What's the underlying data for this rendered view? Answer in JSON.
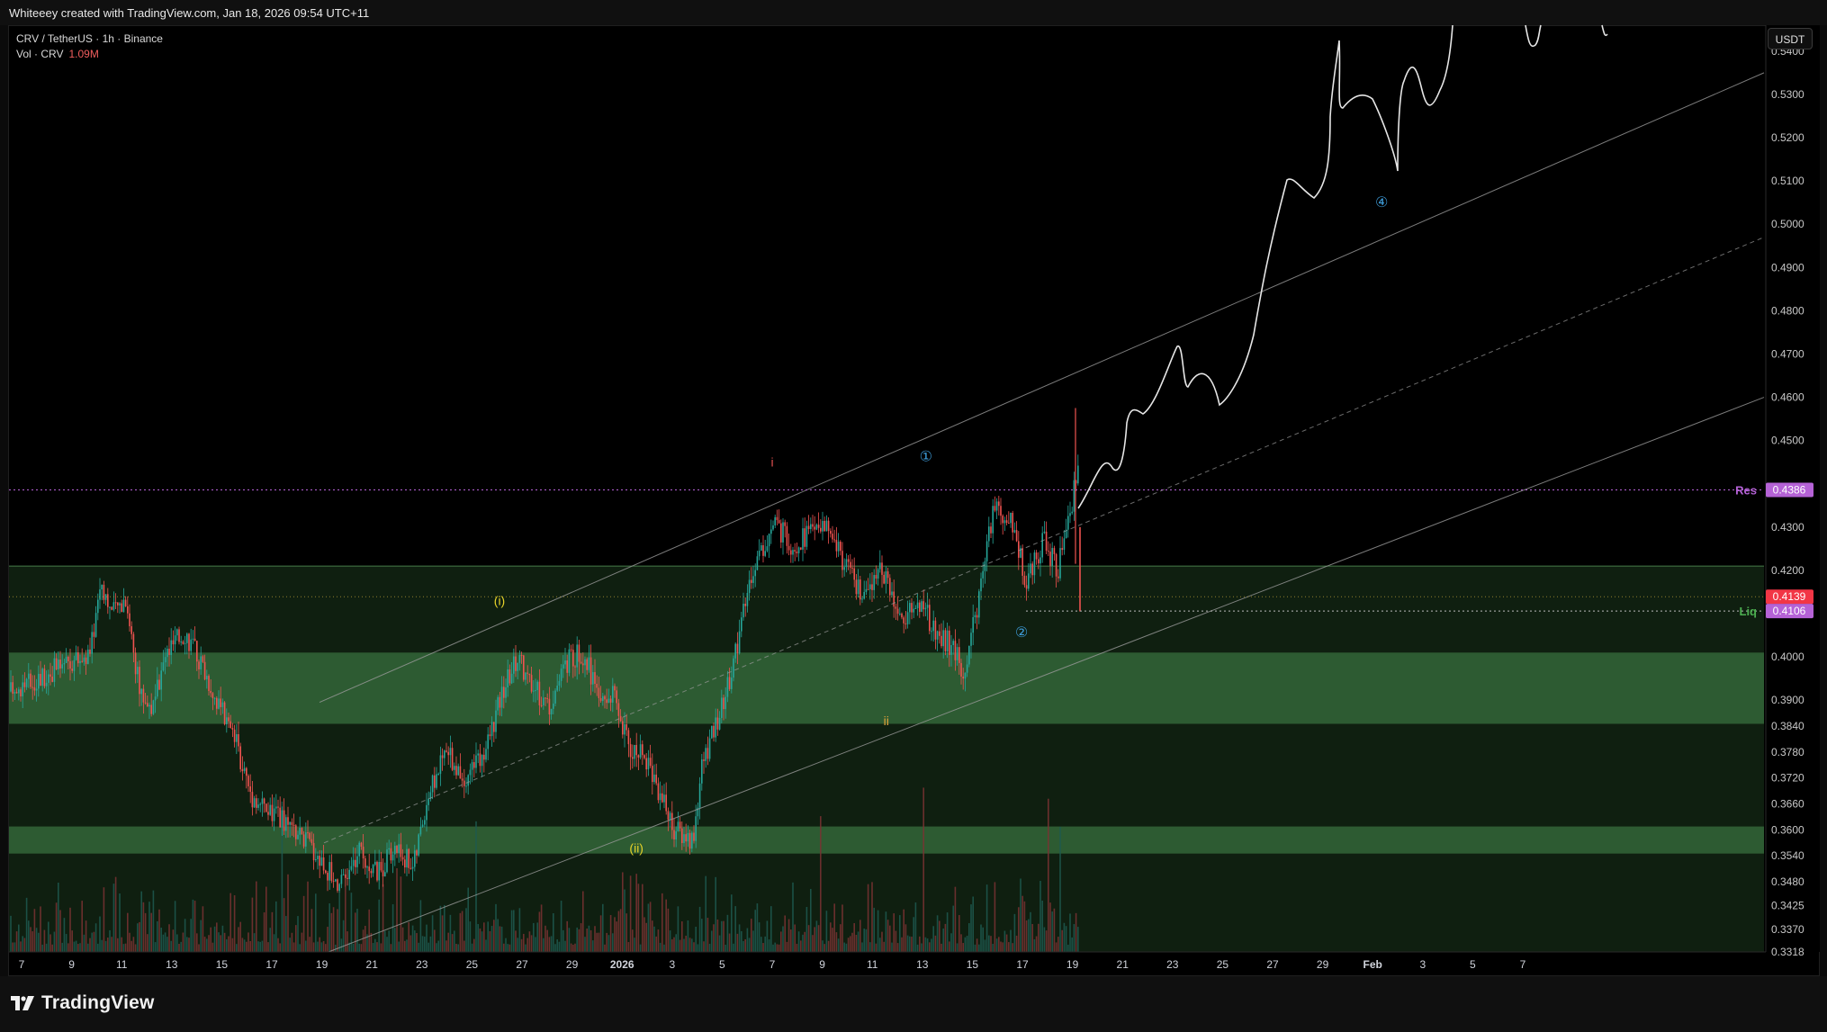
{
  "header": {
    "credit": "Whiteeey created with TradingView.com, Jan 18, 2026 09:54 UTC+11"
  },
  "legend": {
    "symbol_line": "CRV / TetherUS · 1h · Binance",
    "vol_label": "Vol · CRV",
    "vol_value": "1.09M"
  },
  "currency_button": {
    "label": "USDT"
  },
  "brand": {
    "name": "TradingView"
  },
  "colors": {
    "zone_green": "#2d5b32",
    "zone_dark": "#0f1f10",
    "res_purple": "#b562d6",
    "liq_green": "#4caf50",
    "price_red": "#f23645",
    "up": "#26a69a",
    "down": "#ef5350",
    "wave_blue": "#3d9bd8",
    "wave_yellow": "#e6d229",
    "wave_orange": "#e0a23a",
    "wave_red": "#e05050"
  },
  "chart_data": {
    "type": "candlestick",
    "symbol": "CRV / TetherUS",
    "timeframe": "1h",
    "exchange": "Binance",
    "y_axis": {
      "ticks": [
        "0.5400",
        "0.5300",
        "0.5200",
        "0.5100",
        "0.5000",
        "0.4900",
        "0.4800",
        "0.4700",
        "0.4600",
        "0.4500",
        "0.4300",
        "0.4200",
        "0.4000",
        "0.3900",
        "0.3840",
        "0.3780",
        "0.3720",
        "0.3660",
        "0.3600",
        "0.3540",
        "0.3480",
        "0.3425",
        "0.3370",
        "0.3318"
      ],
      "tick_values": [
        0.54,
        0.53,
        0.52,
        0.51,
        0.5,
        0.49,
        0.48,
        0.47,
        0.46,
        0.45,
        0.43,
        0.42,
        0.4,
        0.39,
        0.384,
        0.378,
        0.372,
        0.366,
        0.36,
        0.354,
        0.348,
        0.3425,
        0.337,
        0.3318
      ],
      "range": [
        0.3318,
        0.546
      ]
    },
    "x_axis": {
      "ticks": [
        "7",
        "9",
        "11",
        "13",
        "15",
        "17",
        "19",
        "21",
        "23",
        "25",
        "27",
        "29",
        "2026",
        "3",
        "5",
        "7",
        "9",
        "11",
        "13",
        "15",
        "17",
        "19",
        "21",
        "23",
        "25",
        "27",
        "29",
        "Feb",
        "3",
        "5",
        "7"
      ]
    },
    "price_labels": [
      {
        "label": "Res",
        "value": "0.4386",
        "v": 0.4386
      },
      {
        "label": "",
        "value": "0.4139",
        "v": 0.4139
      },
      {
        "label": "Liq",
        "value": "0.4106",
        "v": 0.4106
      }
    ],
    "zones": [
      {
        "top": 0.421,
        "bottom": 0.401,
        "shade": "dark"
      },
      {
        "top": 0.401,
        "bottom": 0.3845,
        "shade": "light"
      },
      {
        "top": 0.3845,
        "bottom": 0.3608,
        "shade": "dark"
      },
      {
        "top": 0.3608,
        "bottom": 0.3545,
        "shade": "light"
      },
      {
        "top": 0.3545,
        "bottom": 0.3318,
        "shade": "dark"
      }
    ],
    "wave_labels": [
      {
        "text": "i",
        "color": "red",
        "x": "7",
        "v": 0.444
      },
      {
        "text": "(i)",
        "color": "yellow",
        "x": "27",
        "v": 0.412
      },
      {
        "text": "(ii)",
        "color": "yellow",
        "x": "2026",
        "v": 0.3548
      },
      {
        "text": "ii",
        "color": "orange",
        "x": "13",
        "v": 0.3842
      },
      {
        "text": "①",
        "color": "blue",
        "x": "13",
        "v": 0.4452
      },
      {
        "text": "②",
        "color": "blue",
        "x": "17",
        "v": 0.4046
      },
      {
        "text": "④",
        "color": "blue",
        "x": "Feb",
        "v": 0.504
      }
    ],
    "volume": {
      "label": "Vol · CRV",
      "last": "1.09M"
    }
  }
}
